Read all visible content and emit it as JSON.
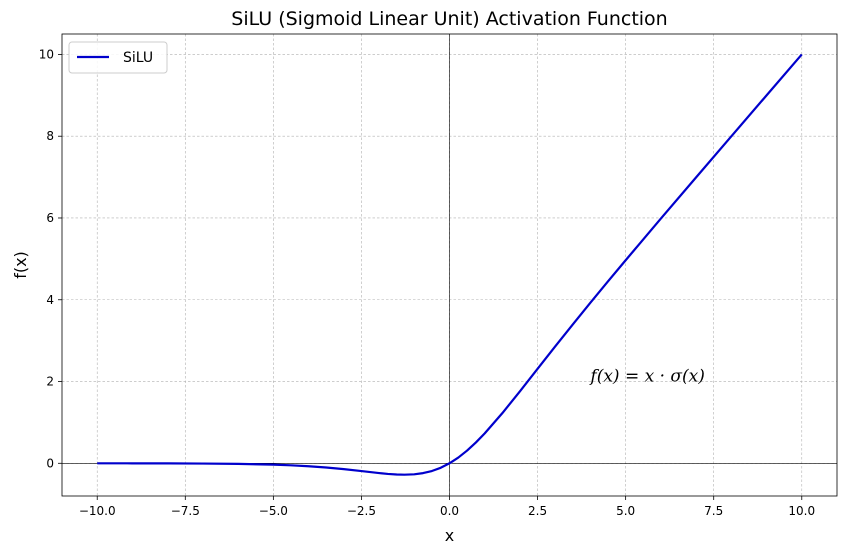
{
  "chart_data": {
    "type": "line",
    "title": "SiLU (Sigmoid Linear Unit) Activation Function",
    "xlabel": "x",
    "ylabel": "f(x)",
    "xlim": [
      -11.0,
      11.0
    ],
    "ylim": [
      -0.8,
      10.5
    ],
    "x_ticks": [
      -10.0,
      -7.5,
      -5.0,
      -2.5,
      0.0,
      2.5,
      5.0,
      7.5,
      10.0
    ],
    "x_tick_labels": [
      "−10.0",
      "−7.5",
      "−5.0",
      "−2.5",
      "0.0",
      "2.5",
      "5.0",
      "7.5",
      "10.0"
    ],
    "y_ticks": [
      0,
      2,
      4,
      6,
      8,
      10
    ],
    "y_tick_labels": [
      "0",
      "2",
      "4",
      "6",
      "8",
      "10"
    ],
    "grid": true,
    "legend": {
      "position": "top-left",
      "entries": [
        "SiLU"
      ]
    },
    "series": [
      {
        "name": "SiLU",
        "color": "#0000cc",
        "x": [
          -10,
          -9,
          -8,
          -7,
          -6,
          -5,
          -4.5,
          -4,
          -3.5,
          -3,
          -2.5,
          -2,
          -1.75,
          -1.5,
          -1.28,
          -1,
          -0.75,
          -0.5,
          -0.25,
          0,
          0.25,
          0.5,
          0.75,
          1,
          1.5,
          2,
          2.5,
          3,
          3.5,
          4,
          4.5,
          5,
          6,
          7,
          8,
          9,
          10
        ],
        "y": [
          -0.0005,
          -0.0011,
          -0.0027,
          -0.0064,
          -0.0148,
          -0.0335,
          -0.0493,
          -0.0719,
          -0.1033,
          -0.1423,
          -0.1896,
          -0.2384,
          -0.2603,
          -0.2736,
          -0.2785,
          -0.2689,
          -0.2398,
          -0.1888,
          -0.1097,
          0,
          0.1403,
          0.3112,
          0.5102,
          0.7311,
          1.2264,
          1.7616,
          2.3104,
          2.8577,
          3.3967,
          3.9281,
          4.4502,
          4.9665,
          5.9852,
          6.9936,
          7.9973,
          8.9989,
          9.9995
        ]
      }
    ],
    "annotations": [
      {
        "text": "f(x) = x · σ(x)",
        "x": 4.0,
        "y": 2.0
      }
    ],
    "reference_lines": {
      "x": 0,
      "y": 0
    }
  }
}
